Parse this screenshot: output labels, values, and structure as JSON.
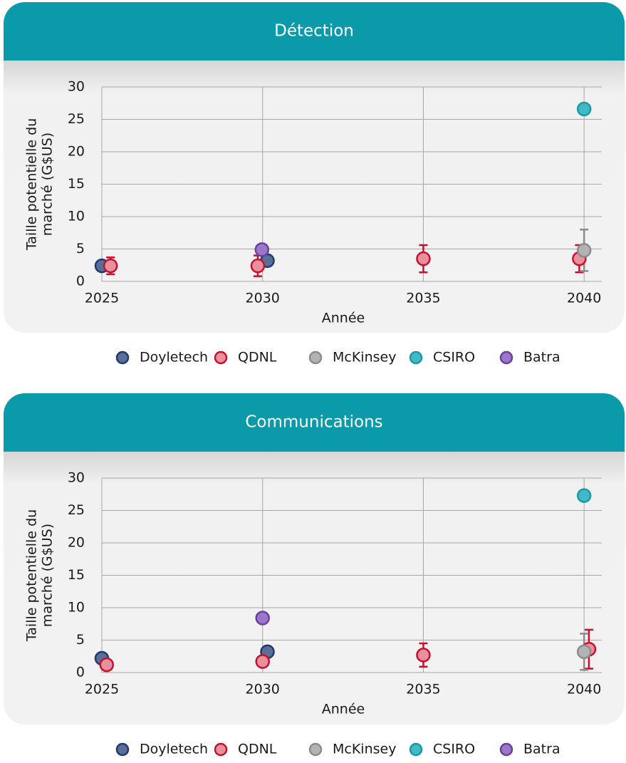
{
  "chart_data": [
    {
      "type": "scatter",
      "title": "Détection",
      "xlabel": "Année",
      "ylabel": [
        "Taille potentielle du",
        "marché (G$US)"
      ],
      "xlim": [
        2025,
        2040.55
      ],
      "ylim": [
        0,
        30
      ],
      "xticks": [
        2025,
        2030,
        2035,
        2040
      ],
      "yticks": [
        0,
        5,
        10,
        15,
        20,
        25,
        30
      ],
      "grid": true,
      "series": [
        {
          "name": "Doyletech",
          "color": "#5b6f96",
          "edge": "#1f3a6e",
          "x": [
            2025,
            2030.15
          ],
          "values": [
            2.4,
            3.2
          ],
          "errors": [
            null,
            null
          ]
        },
        {
          "name": "QDNL",
          "color": "#e8909c",
          "edge": "#c8102e",
          "x": [
            2025.27,
            2029.85,
            2035,
            2039.85
          ],
          "values": [
            2.4,
            2.4,
            3.5,
            3.5
          ],
          "errors": [
            1.3,
            1.6,
            2.1,
            2.1
          ]
        },
        {
          "name": "McKinsey",
          "color": "#b3b3b3",
          "edge": "#8c8c8c",
          "x": [
            2040
          ],
          "values": [
            4.8
          ],
          "errors": [
            3.2
          ]
        },
        {
          "name": "CSIRO",
          "color": "#43b8c6",
          "edge": "#1a9aa8",
          "x": [
            2040
          ],
          "values": [
            26.6
          ],
          "errors": [
            null
          ]
        },
        {
          "name": "Batra",
          "color": "#9a77c7",
          "edge": "#6c3fa0",
          "x": [
            2029.98
          ],
          "values": [
            4.9
          ],
          "errors": [
            null
          ]
        }
      ]
    },
    {
      "type": "scatter",
      "title": "Communications",
      "xlabel": "Année",
      "ylabel": [
        "Taille potentielle du",
        "marché (G$US)"
      ],
      "xlim": [
        2025,
        2040.55
      ],
      "ylim": [
        0,
        30
      ],
      "xticks": [
        2025,
        2030,
        2035,
        2040
      ],
      "yticks": [
        0,
        5,
        10,
        15,
        20,
        25,
        30
      ],
      "grid": true,
      "series": [
        {
          "name": "Doyletech",
          "color": "#5b6f96",
          "edge": "#1f3a6e",
          "x": [
            2025,
            2030.15
          ],
          "values": [
            2.2,
            3.2
          ],
          "errors": [
            null,
            null
          ]
        },
        {
          "name": "QDNL",
          "color": "#e8909c",
          "edge": "#c8102e",
          "x": [
            2025.15,
            2030,
            2035,
            2040.15
          ],
          "values": [
            1.2,
            1.7,
            2.7,
            3.6
          ],
          "errors": [
            null,
            null,
            1.8,
            3.0
          ]
        },
        {
          "name": "McKinsey",
          "color": "#b3b3b3",
          "edge": "#8c8c8c",
          "x": [
            2040
          ],
          "values": [
            3.2
          ],
          "errors": [
            2.8
          ]
        },
        {
          "name": "CSIRO",
          "color": "#43b8c6",
          "edge": "#1a9aa8",
          "x": [
            2040
          ],
          "values": [
            27.3
          ],
          "errors": [
            null
          ]
        },
        {
          "name": "Batra",
          "color": "#9a77c7",
          "edge": "#6c3fa0",
          "x": [
            2030
          ],
          "values": [
            8.4
          ],
          "errors": [
            null
          ]
        }
      ]
    }
  ]
}
